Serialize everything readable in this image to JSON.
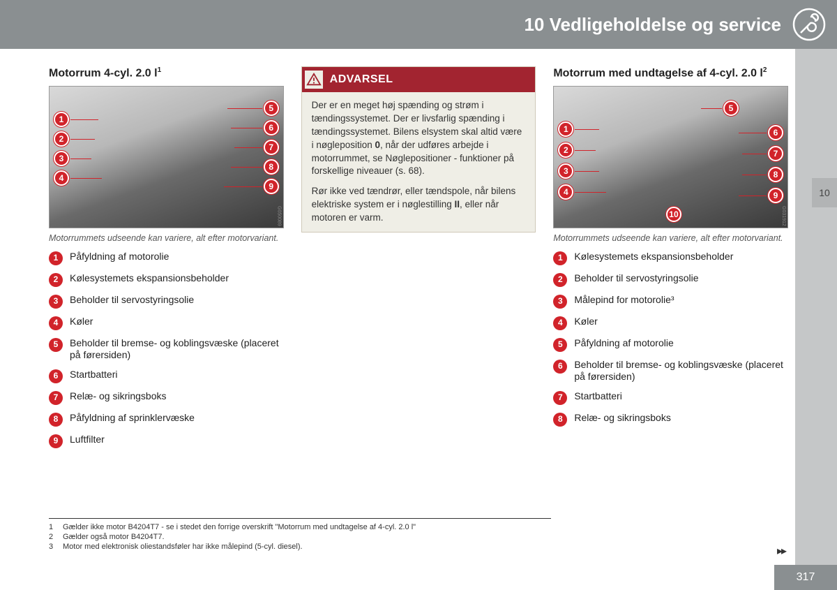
{
  "header": {
    "chapter_number": "10",
    "chapter_title": "Vedligeholdelse og service"
  },
  "side_tab": "10",
  "page_number": "317",
  "columns": {
    "left": {
      "title": "Motorrum 4-cyl. 2.0 l",
      "title_sup": "1",
      "caption": "Motorrummets udseende kan variere, alt efter motorvariant.",
      "image_code": "G050089",
      "markers_left": [
        "1",
        "2",
        "3",
        "4"
      ],
      "markers_right": [
        "5",
        "6",
        "7",
        "8",
        "9"
      ],
      "items": [
        "Påfyldning af motorolie",
        "Kølesystemets ekspansionsbeholder",
        "Beholder til servostyringsolie",
        "Køler",
        "Beholder til bremse- og koblingsvæske (placeret på førersiden)",
        "Startbatteri",
        "Relæ- og sikringsboks",
        "Påfyldning af sprinklervæske",
        "Luftfilter"
      ]
    },
    "center": {
      "warning_label": "ADVARSEL",
      "para1_a": "Der er en meget høj spænding og strøm i tændingssystemet. Der er livsfarlig spænding i tændingssystemet. Bilens elsystem skal altid være i nøgleposition ",
      "para1_bold1": "0",
      "para1_b": ", når der udføres arbejde i motorrummet, se Nøglepositioner - funktioner på forskellige niveauer (s. 68).",
      "para2_a": "Rør ikke ved tændrør, eller tændspole, når bilens elektriske system er i nøglestilling ",
      "para2_bold1": "II",
      "para2_b": ", eller når motoren er varm."
    },
    "right": {
      "title": "Motorrum med undtagelse af 4-cyl. 2.0 l",
      "title_sup": "2",
      "caption": "Motorrummets udseende kan variere, alt efter motorvariant.",
      "image_code": "G031912",
      "markers_left": [
        "1",
        "2",
        "3",
        "4"
      ],
      "markers_right": [
        "5",
        "6",
        "7",
        "8",
        "9"
      ],
      "marker_bottom": "10",
      "items": [
        "Kølesystemets ekspansionsbeholder",
        "Beholder til servostyringsolie",
        "Målepind for motorolie³",
        "Køler",
        "Påfyldning af motorolie",
        "Beholder til bremse- og koblingsvæske (placeret på førersiden)",
        "Startbatteri",
        "Relæ- og sikringsboks"
      ]
    }
  },
  "footnotes": [
    {
      "n": "1",
      "t": "Gælder ikke motor B4204T7 - se i stedet den forrige overskrift \"Motorrum med undtagelse af 4-cyl. 2.0 l\""
    },
    {
      "n": "2",
      "t": "Gælder også motor B4204T7."
    },
    {
      "n": "3",
      "t": "Motor med elektronisk oliestandsføler har ikke målepind (5-cyl. diesel)."
    }
  ],
  "colors": {
    "header_bg": "#8a8f91",
    "accent_red": "#d1232a",
    "warn_red": "#a22430",
    "warn_bg": "#efeee6"
  }
}
